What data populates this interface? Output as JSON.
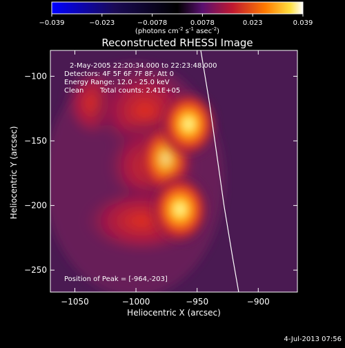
{
  "chart_data": {
    "type": "heatmap",
    "title": "Reconstructed RHESSI Image",
    "xlabel": "Heliocentric X (arcsec)",
    "ylabel": "Heliocentric Y (arcsec)",
    "xlim": [
      -1070,
      -868
    ],
    "ylim": [
      -267,
      -80
    ],
    "xticks": [
      -1050,
      -1000,
      -950,
      -900
    ],
    "yticks": [
      -100,
      -150,
      -200,
      -250
    ],
    "colorbar": {
      "range": [
        -0.039,
        0.039
      ],
      "ticks": [
        "-0.039",
        "-0.023",
        "-0.0078",
        "0.0078",
        "0.023",
        "0.039"
      ],
      "units_prefix": "(photons cm",
      "units_sup1": "-2",
      "units_mid": " s",
      "units_sup2": "-1",
      "units_mid2": " asec",
      "units_sup3": "-2",
      "units_suffix": ")",
      "colormap": "RHESSI hot (blue-black-purple-red-orange-yellow-white)"
    },
    "annotations": {
      "time": "2-May-2005 22:20:34.000 to 22:23:48.000",
      "detectors": "Detectors: 4F 5F 6F 7F 8F, Att 0",
      "energy": "Energy Range: 12.0 - 25.0 keV",
      "clean_label": "Clean",
      "counts": "Total counts: 2.41E+05",
      "peak": "Position of Peak = [-964,-203]"
    },
    "sources": [
      {
        "x": -957,
        "y": -137,
        "value": 0.036
      },
      {
        "x": -964,
        "y": -203,
        "value": 0.039
      }
    ],
    "peak": [
      -964,
      -203
    ],
    "limb_line": [
      [
        -947,
        -80
      ],
      [
        -940,
        -120
      ],
      [
        -934,
        -160
      ],
      [
        -928,
        -200
      ],
      [
        -921,
        -240
      ],
      [
        -916,
        -267
      ]
    ],
    "timestamp": "4-Jul-2013 07:56"
  }
}
